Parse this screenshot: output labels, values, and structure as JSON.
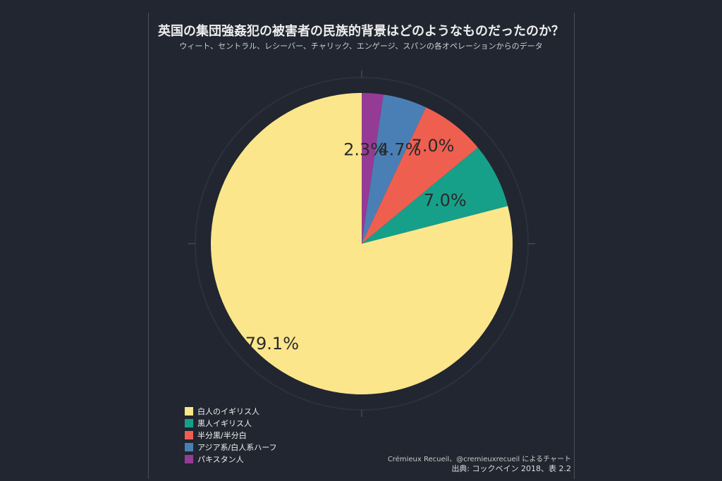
{
  "chart_data": {
    "type": "pie",
    "title": "英国の集団強姦犯の被害者の民族的背景はどのようなものだったのか？",
    "subtitle": "ウィート、セントラル、レシーバー、チャリック、エンゲージ、スパンの各オペレーションからのデータ",
    "categories": [
      "白人のイギリス人",
      "黒人イギリス人",
      "半分黒/半分白",
      "アジア系/白人系ハーフ",
      "パキスタン人"
    ],
    "values": [
      79.1,
      7.0,
      7.0,
      4.7,
      2.3
    ],
    "labels": [
      "79.1%",
      "7.0%",
      "7.0%",
      "4.7%",
      "2.3%"
    ],
    "colors": [
      "#fce68c",
      "#16a08a",
      "#ef5f50",
      "#4a7fb5",
      "#963b95"
    ],
    "start": "top",
    "direction": "counterclockwise",
    "legend_position": "bottom-left"
  },
  "credit": "Crémieux Recueil、@cremieuxrecueil によるチャート",
  "source": "出典: コックベイン 2018、表 2.2"
}
